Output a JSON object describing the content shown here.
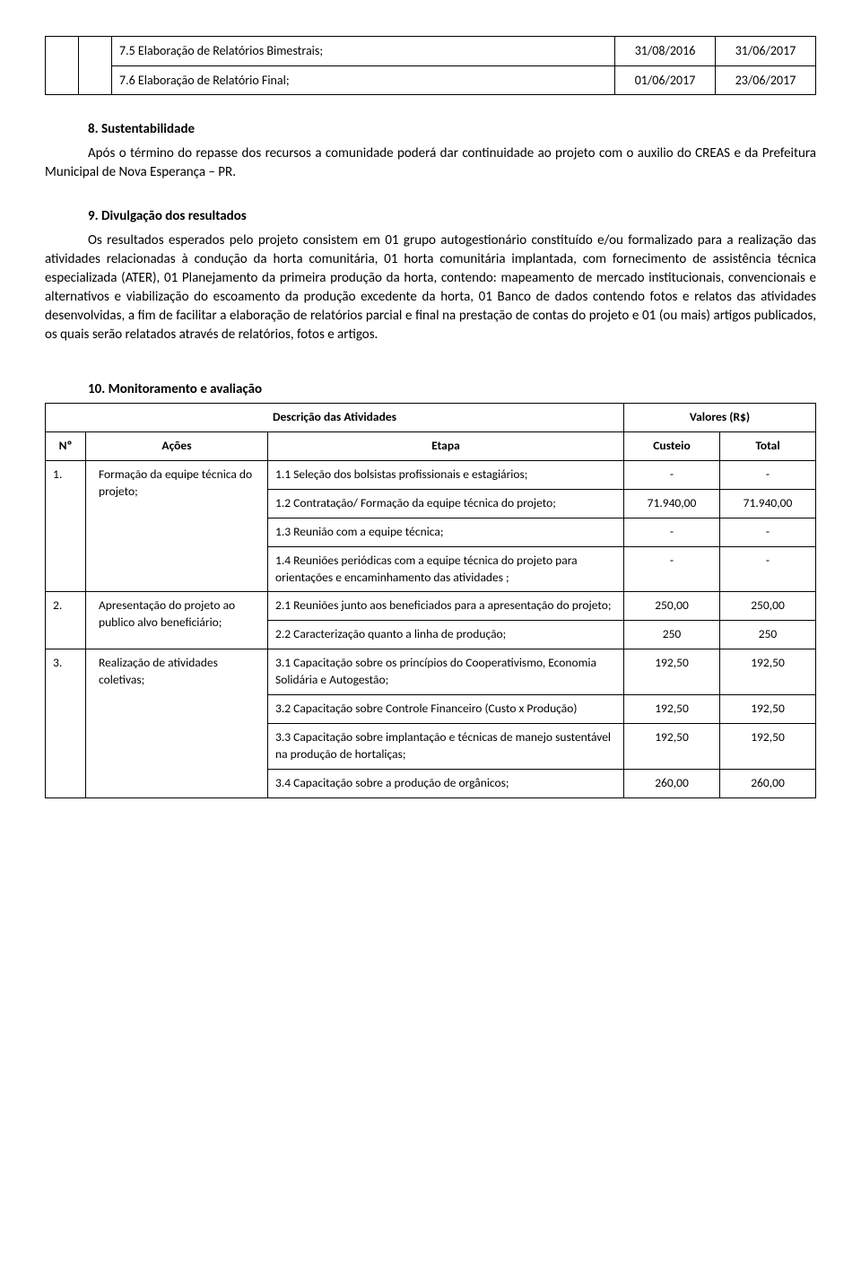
{
  "topTable": {
    "rows": [
      {
        "desc": "7.5 Elaboração de Relatórios Bimestrais;",
        "d1": "31/08/2016",
        "d2": "31/06/2017"
      },
      {
        "desc": "7.6 Elaboração de Relatório Final;",
        "d1": "01/06/2017",
        "d2": "23/06/2017"
      }
    ]
  },
  "section8": {
    "title": "8. Sustentabilidade",
    "body": "Após o término do repasse dos recursos a comunidade poderá dar continuidade ao projeto com o auxilio do CREAS e da Prefeitura Municipal de Nova Esperança – PR."
  },
  "section9": {
    "title": "9. Divulgação dos resultados",
    "body": "Os resultados esperados pelo projeto consistem em 01 grupo autogestionário constituído e/ou formalizado para a realização das atividades relacionadas à condução da horta comunitária, 01 horta comunitária implantada, com fornecimento de assistência técnica especializada (ATER), 01 Planejamento da primeira produção da horta, contendo: mapeamento de mercado institucionais, convencionais e alternativos e viabilização do escoamento da produção excedente da horta, 01 Banco de dados contendo fotos e relatos das atividades desenvolvidas, a fim de facilitar a elaboração de relatórios parcial e final na prestação de contas do projeto e 01 (ou mais) artigos publicados, os quais serão relatados através de relatórios, fotos e artigos."
  },
  "section10": {
    "title": "10. Monitoramento e avaliação",
    "descHdr": "Descrição das Atividades",
    "valHdr": "Valores  (R$)",
    "cols": {
      "no": "Nº",
      "acoes": "Ações",
      "etapa": "Etapa",
      "custeio": "Custeio",
      "total": "Total"
    },
    "rows": [
      {
        "no": "1.",
        "acao": "Formação da equipe técnica do projeto;",
        "etapas": [
          {
            "t": "1.1 Seleção dos bolsistas profissionais e estagiários;",
            "c": "-",
            "tot": "-"
          },
          {
            "t": "1.2 Contratação/ Formação da equipe técnica do projeto;",
            "c": "71.940,00",
            "tot": "71.940,00"
          },
          {
            "t": "1.3 Reunião com a equipe técnica;",
            "c": "-",
            "tot": "-"
          },
          {
            "t": "1.4 Reuniões periódicas com a equipe técnica do projeto para orientações e encaminhamento das atividades ;",
            "c": "-",
            "tot": "-"
          }
        ]
      },
      {
        "no": "2.",
        "acao": "Apresentação do projeto ao publico alvo beneficiário;",
        "etapas": [
          {
            "t": "2.1 Reuniões junto aos beneficiados para a apresentação do projeto;",
            "c": "250,00",
            "tot": "250,00"
          },
          {
            "t": "2.2 Caracterização quanto a linha de produção;",
            "c": "250",
            "tot": "250"
          }
        ]
      },
      {
        "no": "3.",
        "acao": "Realização de atividades coletivas;",
        "etapas": [
          {
            "t": "3.1 Capacitação sobre os princípios do Cooperativismo, Economia Solidária e Autogestão;",
            "c": "192,50",
            "tot": "192,50"
          },
          {
            "t": "3.2 Capacitação sobre Controle Financeiro (Custo x Produção)",
            "c": "192,50",
            "tot": "192,50"
          },
          {
            "t": "3.3 Capacitação sobre implantação e técnicas de manejo sustentável na produção de hortaliças;",
            "c": "192,50",
            "tot": "192,50"
          },
          {
            "t": "3.4 Capacitação sobre a produção de orgânicos;",
            "c": "260,00",
            "tot": "260,00"
          }
        ]
      }
    ]
  }
}
